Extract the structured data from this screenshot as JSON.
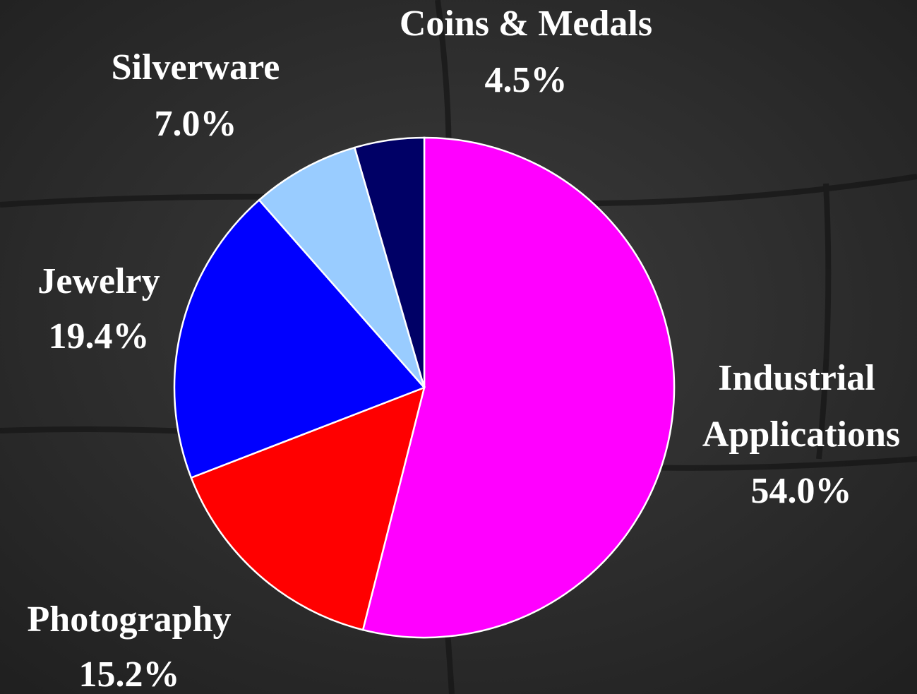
{
  "chart_data": {
    "type": "pie",
    "categories": [
      "Industrial Applications",
      "Photography",
      "Jewelry",
      "Silverware",
      "Coins & Medals"
    ],
    "values": [
      54.0,
      15.2,
      19.4,
      7.0,
      4.5
    ],
    "value_labels": [
      "54.0%",
      "15.2%",
      "19.4%",
      "7.0%",
      "4.5%"
    ],
    "colors": [
      "#ff00ff",
      "#ff0000",
      "#0000ff",
      "#99ccff",
      "#000066"
    ]
  }
}
